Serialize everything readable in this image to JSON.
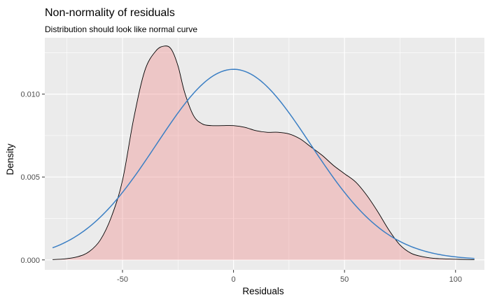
{
  "chart_data": {
    "type": "area",
    "title": "Non-normality of residuals",
    "subtitle": "Distribution should look like normal curve",
    "xlabel": "Residuals",
    "ylabel": "Density",
    "xlim": [
      -85,
      113
    ],
    "ylim": [
      -0.0006,
      0.0134
    ],
    "x_ticks": [
      -50,
      0,
      50,
      100
    ],
    "x_tick_labels": [
      "-50",
      "0",
      "50",
      "100"
    ],
    "y_ticks": [
      0.0,
      0.005,
      0.01
    ],
    "y_tick_labels": [
      "0.000",
      "0.005",
      "0.010"
    ],
    "grid": true,
    "legend": "none",
    "colors": {
      "panel": "#ebebeb",
      "grid": "#ffffff",
      "density_fill": "#f08080",
      "density_fill_opacity": 0.35,
      "density_line": "#000000",
      "normal_line": "#3b7fc4"
    },
    "series": [
      {
        "kind": "density",
        "x": [
          -81.5,
          -76,
          -70,
          -65,
          -60,
          -55,
          -50,
          -45,
          -40,
          -35,
          -31,
          -28,
          -25,
          -22,
          -18,
          -14,
          -10,
          -5,
          0,
          5,
          10,
          15,
          20,
          25,
          30,
          35,
          40,
          45,
          50,
          55,
          60,
          65,
          70,
          75,
          80,
          85,
          90,
          95,
          100,
          105,
          108.5
        ],
        "y": [
          2e-05,
          6e-05,
          0.0002,
          0.0005,
          0.0012,
          0.0026,
          0.0048,
          0.0085,
          0.0114,
          0.0126,
          0.0129,
          0.0127,
          0.0117,
          0.0101,
          0.0087,
          0.0082,
          0.0081,
          0.0081,
          0.0081,
          0.008,
          0.0078,
          0.0077,
          0.0077,
          0.0076,
          0.0073,
          0.0068,
          0.0063,
          0.0057,
          0.0052,
          0.0047,
          0.0039,
          0.0029,
          0.0018,
          0.0009,
          0.0004,
          0.0002,
          0.0001,
          6e-05,
          4e-05,
          2e-05,
          1e-05
        ]
      },
      {
        "kind": "normal",
        "mean": 0,
        "sd": 34.7,
        "x_range": [
          -81.5,
          108.5
        ]
      }
    ]
  }
}
